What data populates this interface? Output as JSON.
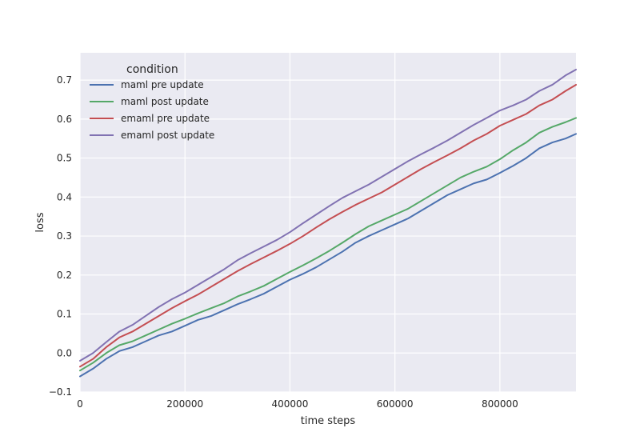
{
  "chart_data": {
    "type": "line",
    "xlabel": "time steps",
    "ylabel": "loss",
    "xlim": [
      0,
      945000
    ],
    "ylim": [
      -0.1,
      0.77
    ],
    "xticks": [
      0,
      200000,
      400000,
      600000,
      800000
    ],
    "xtick_labels": [
      "0",
      "200000",
      "400000",
      "600000",
      "800000"
    ],
    "yticks": [
      -0.1,
      0.0,
      0.1,
      0.2,
      0.3,
      0.4,
      0.5,
      0.6,
      0.7
    ],
    "ytick_labels": [
      "−0.1",
      "0.0",
      "0.1",
      "0.2",
      "0.3",
      "0.4",
      "0.5",
      "0.6",
      "0.7"
    ],
    "grid": true,
    "background": "#eaeaf2",
    "legend": {
      "title": "condition",
      "placement": "top-left"
    },
    "x": [
      0,
      25000,
      50000,
      75000,
      100000,
      125000,
      150000,
      175000,
      200000,
      225000,
      250000,
      275000,
      300000,
      325000,
      350000,
      375000,
      400000,
      425000,
      450000,
      475000,
      500000,
      525000,
      550000,
      575000,
      600000,
      625000,
      650000,
      675000,
      700000,
      725000,
      750000,
      775000,
      800000,
      825000,
      850000,
      875000,
      900000,
      925000,
      945000
    ],
    "series": [
      {
        "name": "maml pre update",
        "color": "#4c72b0",
        "values": [
          -0.06,
          -0.04,
          -0.015,
          0.005,
          0.015,
          0.03,
          0.045,
          0.055,
          0.07,
          0.085,
          0.095,
          0.11,
          0.125,
          0.138,
          0.152,
          0.17,
          0.188,
          0.203,
          0.22,
          0.24,
          0.26,
          0.283,
          0.3,
          0.315,
          0.33,
          0.345,
          0.365,
          0.385,
          0.405,
          0.42,
          0.435,
          0.445,
          0.462,
          0.48,
          0.5,
          0.525,
          0.54,
          0.55,
          0.562
        ]
      },
      {
        "name": "maml post update",
        "color": "#55a868",
        "values": [
          -0.045,
          -0.025,
          0.0,
          0.02,
          0.03,
          0.045,
          0.06,
          0.075,
          0.088,
          0.102,
          0.115,
          0.128,
          0.145,
          0.158,
          0.172,
          0.19,
          0.208,
          0.225,
          0.243,
          0.262,
          0.283,
          0.305,
          0.325,
          0.34,
          0.355,
          0.37,
          0.39,
          0.41,
          0.43,
          0.45,
          0.465,
          0.478,
          0.497,
          0.52,
          0.54,
          0.565,
          0.58,
          0.592,
          0.603
        ]
      },
      {
        "name": "emaml pre update",
        "color": "#c44e52",
        "values": [
          -0.035,
          -0.015,
          0.015,
          0.04,
          0.055,
          0.075,
          0.095,
          0.115,
          0.133,
          0.15,
          0.17,
          0.19,
          0.21,
          0.228,
          0.245,
          0.262,
          0.28,
          0.3,
          0.322,
          0.343,
          0.362,
          0.38,
          0.396,
          0.412,
          0.432,
          0.452,
          0.472,
          0.49,
          0.507,
          0.525,
          0.545,
          0.562,
          0.583,
          0.598,
          0.613,
          0.635,
          0.65,
          0.672,
          0.688
        ]
      },
      {
        "name": "emaml post update",
        "color": "#8172b2",
        "values": [
          -0.02,
          0.0,
          0.028,
          0.055,
          0.072,
          0.095,
          0.118,
          0.138,
          0.155,
          0.175,
          0.195,
          0.215,
          0.238,
          0.256,
          0.273,
          0.29,
          0.31,
          0.333,
          0.355,
          0.377,
          0.398,
          0.415,
          0.432,
          0.452,
          0.472,
          0.492,
          0.51,
          0.527,
          0.545,
          0.565,
          0.585,
          0.603,
          0.622,
          0.635,
          0.65,
          0.672,
          0.688,
          0.712,
          0.727
        ]
      }
    ]
  }
}
